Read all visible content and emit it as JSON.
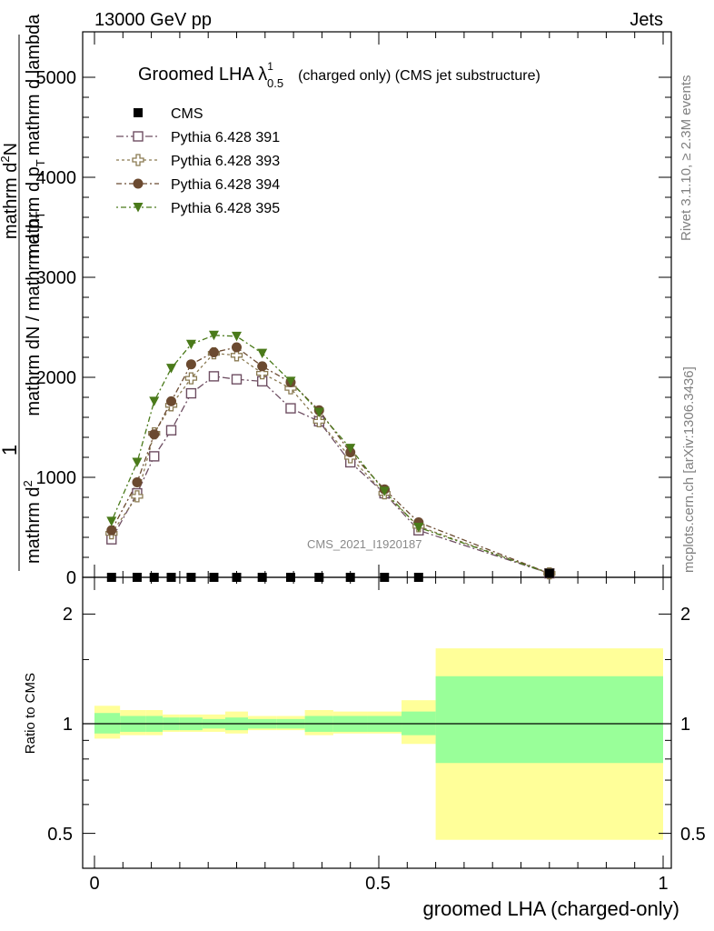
{
  "header": {
    "left": "13000 GeV pp",
    "right": "Jets"
  },
  "side_labels": {
    "rivet": "Rivet 3.1.10, ≥ 2.3M events",
    "mcplots": "mcplots.cern.ch [arXiv:1306.3436]"
  },
  "watermark": "CMS_2021_I1920187",
  "main": {
    "title_main": "Groomed LHA ",
    "title_symbol": "λ",
    "title_sup": "1",
    "title_sub": "0.5",
    "title_rest": "(charged only) (CMS jet substructure)",
    "ylabel_num": "1",
    "ylabel_main": "mathrm dN / mathrm d p",
    "ylabel_sub": "T",
    "ylabel_den_a": "mathrm d",
    "ylabel_den_a_sup": "2",
    "ylabel_den_b": "N",
    "ylabel_den_c": "mathrm d p",
    "ylabel_den_c_sub": "T",
    "ylabel_den_d": "mathrm d lambda",
    "ytick_labels": [
      "0",
      "1000",
      "2000",
      "3000",
      "4000",
      "5000"
    ]
  },
  "ratio": {
    "ylabel": "Ratio to CMS",
    "ytick_labels": [
      "0.5",
      "1",
      "2"
    ]
  },
  "xaxis": {
    "label": "groomed LHA (charged-only)",
    "tick_labels": [
      "0",
      "0.5",
      "1"
    ]
  },
  "chart_data": {
    "type": "scatter",
    "x": [
      0.03,
      0.075,
      0.105,
      0.135,
      0.17,
      0.21,
      0.25,
      0.295,
      0.345,
      0.395,
      0.45,
      0.51,
      0.57,
      0.8
    ],
    "ylim": [
      0,
      5000
    ],
    "xlim": [
      -0.03,
      1.0
    ],
    "series": [
      {
        "name": "CMS",
        "marker": "square-filled",
        "color": "#000000",
        "values": [
          0,
          0,
          0,
          0,
          0,
          0,
          0,
          0,
          0,
          0,
          0,
          0,
          0,
          null
        ]
      },
      {
        "name": "Pythia 6.428 391",
        "marker": "square-open",
        "color": "#6e4e62",
        "dash": "8,3,2,3",
        "values": [
          380,
          840,
          1210,
          1470,
          1840,
          2010,
          1980,
          1960,
          1690,
          1560,
          1150,
          840,
          470,
          40
        ]
      },
      {
        "name": "Pythia 6.428 393",
        "marker": "cross-open",
        "color": "#8a7a52",
        "dash": "3,3",
        "values": [
          440,
          810,
          1440,
          1720,
          1990,
          2240,
          2220,
          2040,
          1890,
          1560,
          1200,
          840,
          510,
          40
        ]
      },
      {
        "name": "Pythia 6.428 394",
        "marker": "circle-filled",
        "color": "#6b4a30",
        "dash": "6,3,2,3",
        "values": [
          470,
          950,
          1430,
          1760,
          2130,
          2250,
          2300,
          2110,
          1950,
          1670,
          1250,
          880,
          550,
          40
        ]
      },
      {
        "name": "Pythia 6.428 395",
        "marker": "triangle-down-filled",
        "color": "#4a7a1a",
        "dash": "2,3,6,3",
        "values": [
          560,
          1150,
          1760,
          2090,
          2330,
          2420,
          2410,
          2240,
          1960,
          1650,
          1290,
          860,
          500,
          40
        ]
      }
    ],
    "ratio": {
      "ylim": [
        0.4,
        2.4
      ],
      "scale": "log",
      "bin_edges": [
        0.0,
        0.045,
        0.09,
        0.12,
        0.15,
        0.19,
        0.23,
        0.27,
        0.32,
        0.37,
        0.42,
        0.48,
        0.54,
        0.6,
        1.0
      ],
      "stat_band": [
        [
          0.94,
          1.07
        ],
        [
          0.95,
          1.05
        ],
        [
          0.95,
          1.05
        ],
        [
          0.96,
          1.04
        ],
        [
          0.96,
          1.04
        ],
        [
          0.97,
          1.03
        ],
        [
          0.96,
          1.04
        ],
        [
          0.97,
          1.03
        ],
        [
          0.97,
          1.03
        ],
        [
          0.95,
          1.05
        ],
        [
          0.95,
          1.05
        ],
        [
          0.95,
          1.05
        ],
        [
          0.93,
          1.08
        ],
        [
          0.78,
          1.35
        ]
      ],
      "syst_band": [
        [
          0.91,
          1.12
        ],
        [
          0.93,
          1.09
        ],
        [
          0.93,
          1.09
        ],
        [
          0.95,
          1.06
        ],
        [
          0.95,
          1.06
        ],
        [
          0.95,
          1.06
        ],
        [
          0.94,
          1.08
        ],
        [
          0.96,
          1.05
        ],
        [
          0.96,
          1.05
        ],
        [
          0.93,
          1.09
        ],
        [
          0.94,
          1.08
        ],
        [
          0.94,
          1.08
        ],
        [
          0.88,
          1.16
        ],
        [
          0.48,
          1.61
        ]
      ],
      "stat_color": "#99ff99",
      "syst_color": "#ffff99"
    }
  }
}
